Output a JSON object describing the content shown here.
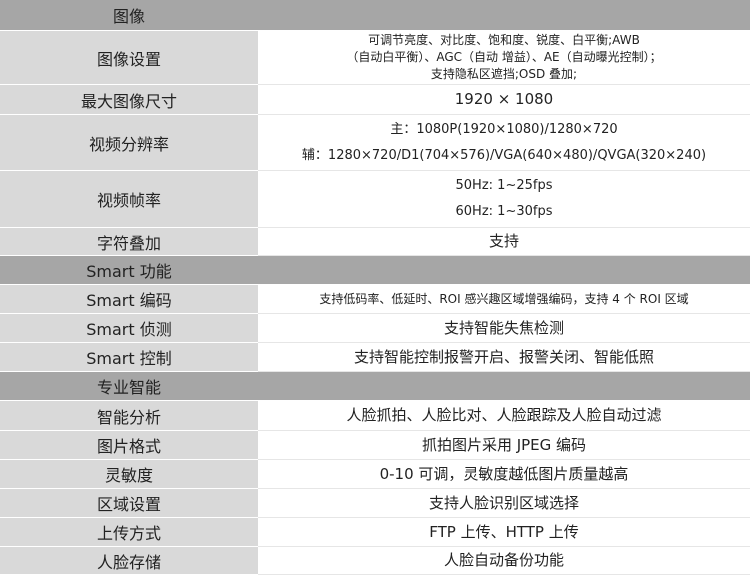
{
  "sections": [
    {
      "title": "图像",
      "rows": [
        {
          "label": "图像设置",
          "lines": [
            "可调节亮度、对比度、饱和度、锐度、白平衡;AWB",
            "（自动白平衡）、AGC（自动 增益）、AE（自动曝光控制）；",
            "支持隐私区遮挡;OSD 叠加;"
          ]
        },
        {
          "label": "最大图像尺寸",
          "lines": [
            "1920 × 1080"
          ]
        },
        {
          "label": "视频分辨率",
          "lines": [
            "主：1080P(1920×1080)/1280×720",
            "辅：1280×720/D1(704×576)/VGA(640×480)/QVGA(320×240)"
          ]
        },
        {
          "label": "视频帧率",
          "lines": [
            "50Hz: 1~25fps",
            "60Hz: 1~30fps"
          ]
        },
        {
          "label": "字符叠加",
          "lines": [
            "支持"
          ]
        }
      ]
    },
    {
      "title": "Smart 功能",
      "rows": [
        {
          "label": "Smart 编码",
          "lines": [
            "支持低码率、低延时、ROI 感兴趣区域增强编码，支持 4 个 ROI 区域"
          ]
        },
        {
          "label": "Smart 侦测",
          "lines": [
            "支持智能失焦检测"
          ]
        },
        {
          "label": "Smart 控制",
          "lines": [
            "支持智能控制报警开启、报警关闭、智能低照"
          ]
        }
      ]
    },
    {
      "title": "专业智能",
      "rows": [
        {
          "label": "智能分析",
          "lines": [
            "人脸抓拍、人脸比对、人脸跟踪及人脸自动过滤"
          ]
        },
        {
          "label": "图片格式",
          "lines": [
            "抓拍图片采用 JPEG 编码"
          ]
        },
        {
          "label": "灵敏度",
          "lines": [
            "0-10 可调，灵敏度越低图片质量越高"
          ]
        },
        {
          "label": "区域设置",
          "lines": [
            "支持人脸识别区域选择"
          ]
        },
        {
          "label": "上传方式",
          "lines": [
            "FTP 上传、HTTP 上传"
          ]
        },
        {
          "label": "人脸存储",
          "lines": [
            "人脸自动备份功能"
          ]
        }
      ]
    }
  ]
}
